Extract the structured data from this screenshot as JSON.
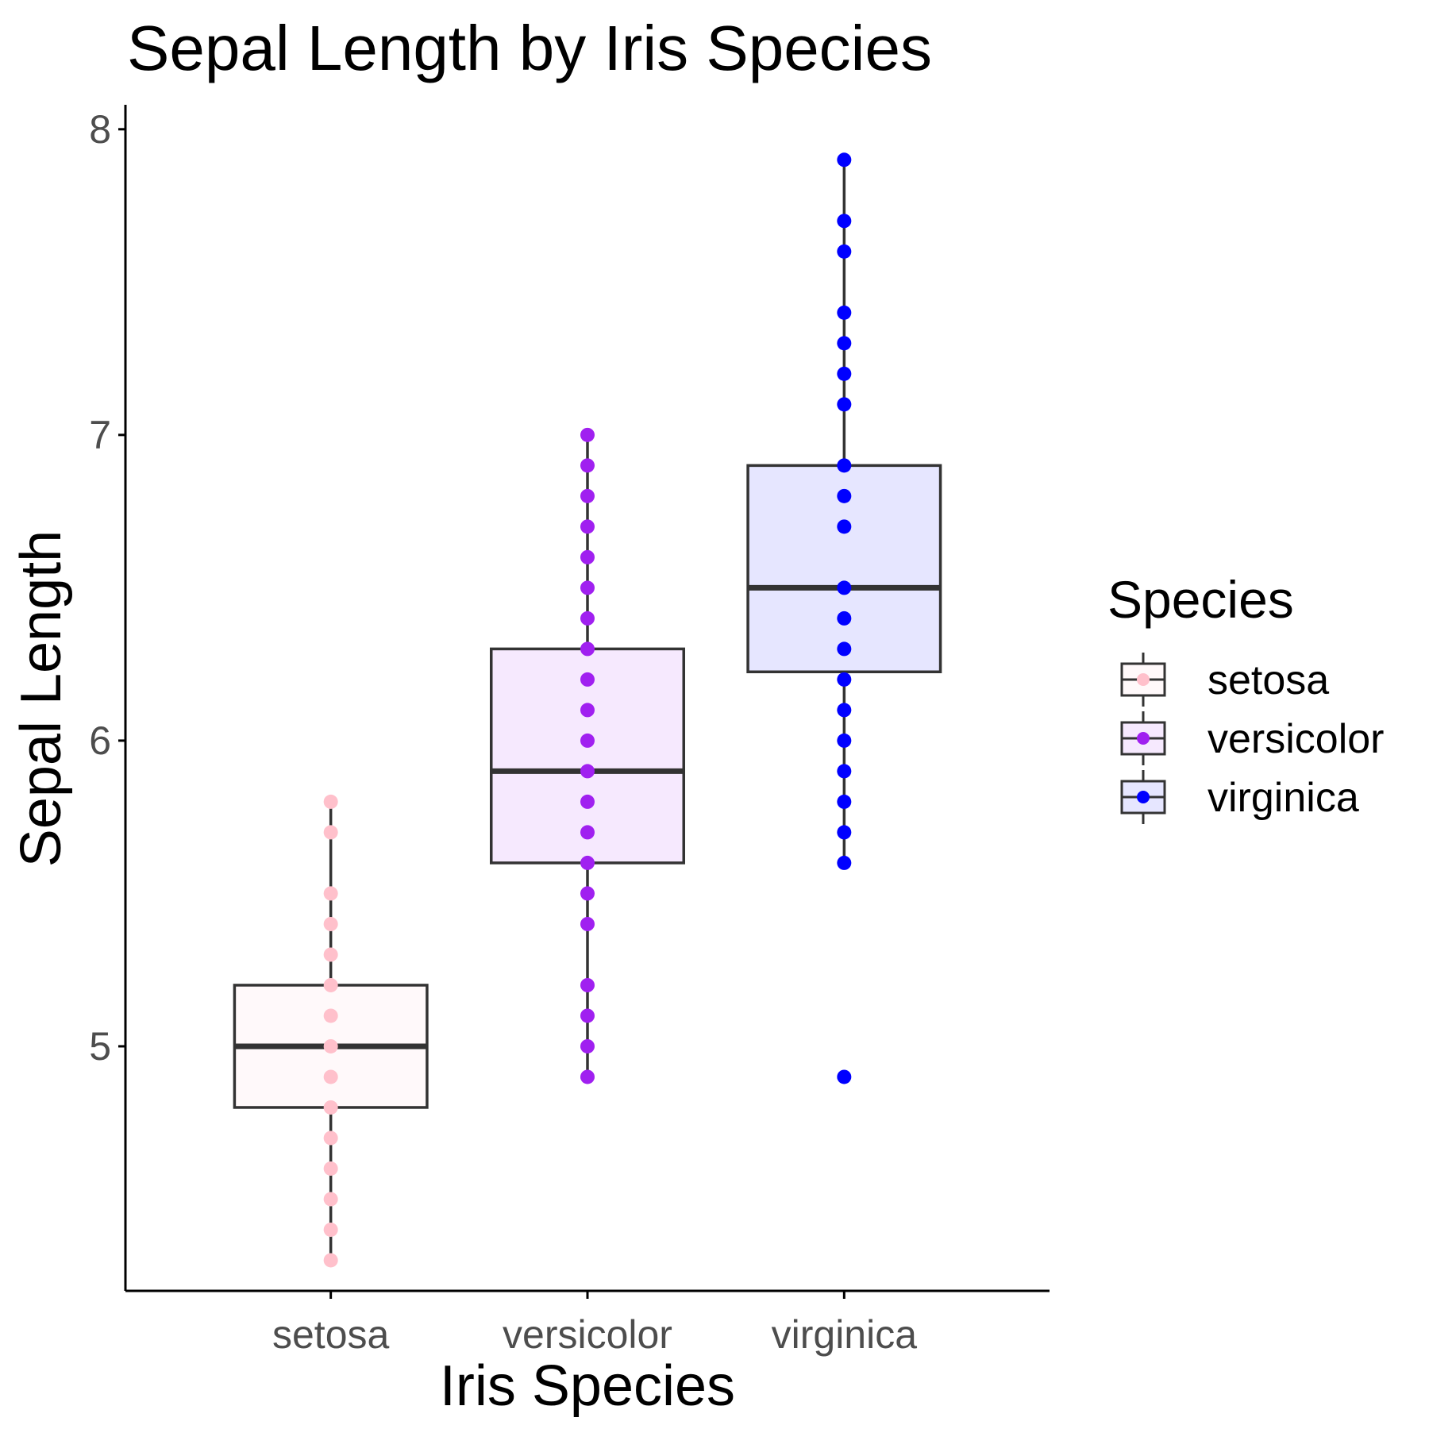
{
  "chart_data": {
    "type": "box",
    "title": "Sepal Length by Iris Species",
    "xlabel": "Iris Species",
    "ylabel": "Sepal Length",
    "ylim": [
      4.2,
      8.08
    ],
    "yticks": [
      5,
      6,
      7,
      8
    ],
    "grid": false,
    "legend": {
      "title": "Species",
      "position": "right"
    },
    "categories": [
      "setosa",
      "versicolor",
      "virginica"
    ],
    "series": [
      {
        "name": "setosa",
        "color": "#FFC0CB",
        "box": {
          "q1": 4.8,
          "median": 5.0,
          "q3": 5.2,
          "whisker_low": 4.3,
          "whisker_high": 5.8
        },
        "points": [
          4.3,
          4.4,
          4.5,
          4.6,
          4.7,
          4.8,
          4.9,
          5.0,
          5.1,
          5.2,
          5.3,
          5.4,
          5.5,
          5.7,
          5.8
        ]
      },
      {
        "name": "versicolor",
        "color": "#A020F0",
        "box": {
          "q1": 5.6,
          "median": 5.9,
          "q3": 6.3,
          "whisker_low": 4.9,
          "whisker_high": 7.0
        },
        "points": [
          4.9,
          5.0,
          5.1,
          5.2,
          5.4,
          5.5,
          5.6,
          5.7,
          5.8,
          5.9,
          6.0,
          6.1,
          6.2,
          6.3,
          6.4,
          6.5,
          6.6,
          6.7,
          6.8,
          6.9,
          7.0
        ]
      },
      {
        "name": "virginica",
        "color": "#0000FF",
        "box": {
          "q1": 6.225,
          "median": 6.5,
          "q3": 6.9,
          "whisker_low": 5.6,
          "whisker_high": 7.9
        },
        "outliers": [
          4.9
        ],
        "points": [
          4.9,
          5.6,
          5.7,
          5.8,
          5.9,
          6.0,
          6.1,
          6.2,
          6.3,
          6.4,
          6.5,
          6.7,
          6.8,
          6.9,
          7.1,
          7.2,
          7.3,
          7.4,
          7.6,
          7.7,
          7.9
        ]
      }
    ]
  }
}
